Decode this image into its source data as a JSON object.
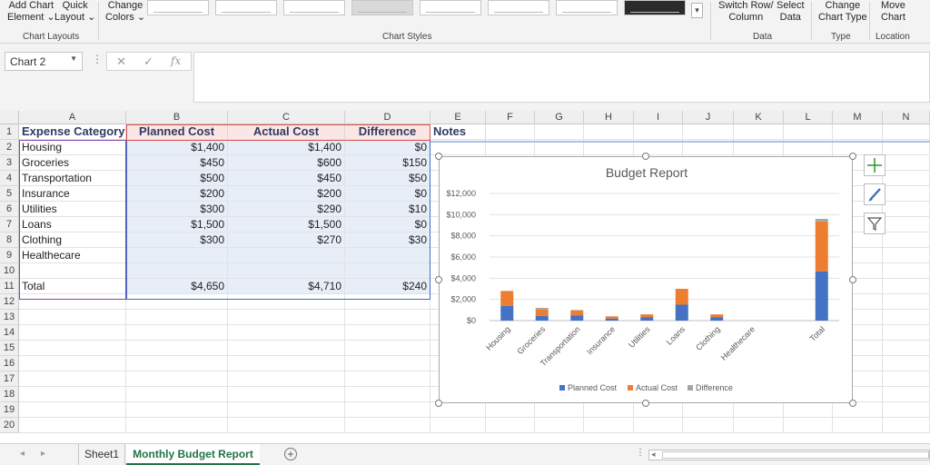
{
  "ribbon": {
    "add_chart_element": [
      "Add Chart",
      "Element ⌄"
    ],
    "quick_layout": [
      "Quick",
      "Layout ⌄"
    ],
    "change_colors": [
      "Change",
      "Colors ⌄"
    ],
    "switch_row_column": [
      "Switch Row/",
      "Column"
    ],
    "select_data": [
      "Select",
      "Data"
    ],
    "change_chart_type": [
      "Change",
      "Chart Type"
    ],
    "move_chart": [
      "Move",
      "Chart"
    ],
    "groups": {
      "chart_layouts": "Chart Layouts",
      "chart_styles": "Chart Styles",
      "data": "Data",
      "type": "Type",
      "location": "Location"
    }
  },
  "formula_bar": {
    "name_box": "Chart 2",
    "cancel_icon": "✕",
    "enter_icon": "✓",
    "function_icon": "fx"
  },
  "columns": [
    "A",
    "B",
    "C",
    "D",
    "E",
    "F",
    "G",
    "H",
    "I",
    "J",
    "K",
    "L",
    "M",
    "N"
  ],
  "rows": [
    "1",
    "2",
    "3",
    "4",
    "5",
    "6",
    "7",
    "8",
    "9",
    "10",
    "11",
    "12",
    "13",
    "14",
    "15",
    "16",
    "17",
    "18",
    "19",
    "20"
  ],
  "table": {
    "headers": [
      "Expense Category",
      "Planned Cost",
      "Actual Cost",
      "Difference",
      "Notes"
    ],
    "body": [
      [
        "Housing",
        "$1,400",
        "$1,400",
        "$0"
      ],
      [
        "Groceries",
        "$450",
        "$600",
        "$150"
      ],
      [
        "Transportation",
        "$500",
        "$450",
        "$50"
      ],
      [
        "Insurance",
        "$200",
        "$200",
        "$0"
      ],
      [
        "Utilities",
        "$300",
        "$290",
        "$10"
      ],
      [
        "Loans",
        "$1,500",
        "$1,500",
        "$0"
      ],
      [
        "Clothing",
        "$300",
        "$270",
        "$30"
      ],
      [
        "Healthecare",
        "",
        "",
        ""
      ],
      [
        "",
        "",
        "",
        ""
      ],
      [
        "Total",
        "$4,650",
        "$4,710",
        "$240"
      ]
    ]
  },
  "chart_data": {
    "type": "bar",
    "stacked": true,
    "title": "Budget Report",
    "categories": [
      "Housing",
      "Groceries",
      "Transportation",
      "Insurance",
      "Utilities",
      "Loans",
      "Clothing",
      "Healthecare",
      "",
      "Total"
    ],
    "series": [
      {
        "name": "Planned Cost",
        "color": "#4472c4",
        "values": [
          1400,
          450,
          500,
          200,
          300,
          1500,
          300,
          0,
          0,
          4650
        ]
      },
      {
        "name": "Actual Cost",
        "color": "#ed7d31",
        "values": [
          1400,
          600,
          450,
          200,
          290,
          1500,
          270,
          0,
          0,
          4710
        ]
      },
      {
        "name": "Difference",
        "color": "#a5a5a5",
        "values": [
          0,
          150,
          50,
          0,
          10,
          0,
          30,
          0,
          0,
          240
        ]
      }
    ],
    "y_ticks": [
      "$0",
      "$2,000",
      "$4,000",
      "$6,000",
      "$8,000",
      "$10,000",
      "$12,000"
    ],
    "ylim": [
      0,
      12000
    ],
    "grid": true,
    "legend": "bottom"
  },
  "sheets": {
    "tabs": [
      "Sheet1",
      "Monthly Budget Report"
    ],
    "active": "Monthly Budget Report",
    "add_label": "+"
  },
  "colors": {
    "excel_green": "#217346",
    "header_text": "#2f3a62"
  }
}
